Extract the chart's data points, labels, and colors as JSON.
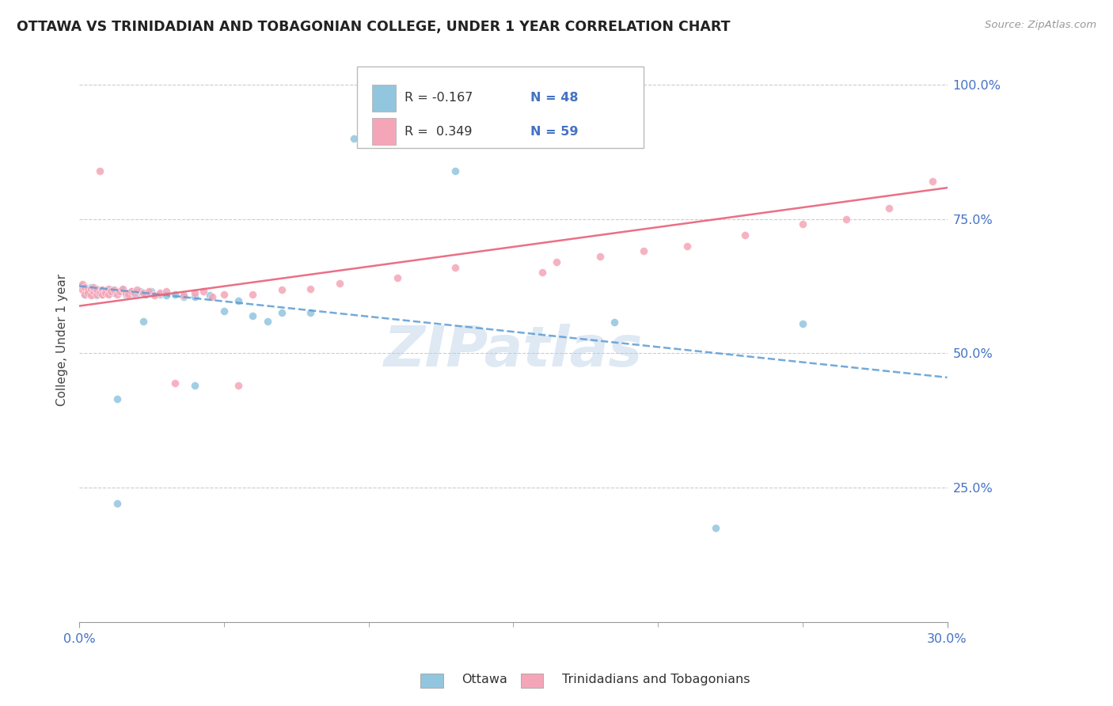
{
  "title": "OTTAWA VS TRINIDADIAN AND TOBAGONIAN COLLEGE, UNDER 1 YEAR CORRELATION CHART",
  "source": "Source: ZipAtlas.com",
  "ylabel": "College, Under 1 year",
  "legend_r1": "R = -0.167",
  "legend_n1": "N = 48",
  "legend_r2": "R = 0.349",
  "legend_n2": "N = 59",
  "blue_color": "#92c5de",
  "pink_color": "#f4a6b8",
  "blue_line_color": "#5b9bd5",
  "pink_line_color": "#e8607a",
  "watermark": "ZIPatlas",
  "xlim": [
    0.0,
    0.3
  ],
  "ylim": [
    0.0,
    1.05
  ],
  "background_color": "#ffffff",
  "grid_color": "#cccccc",
  "blue_trend_x": [
    0.0,
    0.3
  ],
  "blue_trend_y": [
    0.625,
    0.455
  ],
  "pink_trend_x": [
    0.0,
    0.3
  ],
  "pink_trend_y": [
    0.588,
    0.808
  ]
}
